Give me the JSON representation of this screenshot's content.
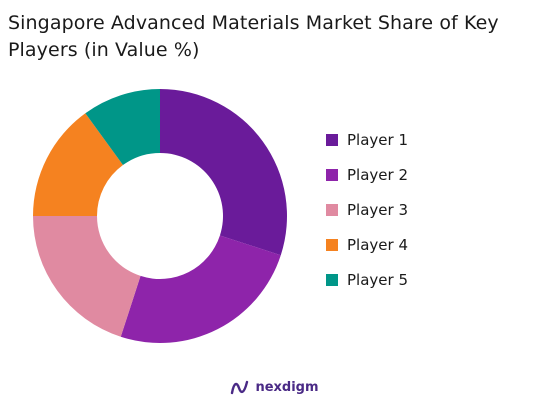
{
  "chart_data": {
    "type": "pie",
    "title": "Singapore Advanced Materials Market Share of Key Players (in Value %)",
    "categories": [
      "Player 1",
      "Player 2",
      "Player 3",
      "Player 4",
      "Player 5"
    ],
    "values": [
      30,
      25,
      20,
      15,
      10
    ],
    "colors": [
      "#6a1b9a",
      "#8e24aa",
      "#e08aa1",
      "#f58220",
      "#009688"
    ],
    "legend_position": "right",
    "donut": true
  },
  "brand": {
    "name": "nexdigm",
    "logo_icon": "nexdigm-logo-icon",
    "color": "#4a2a86"
  }
}
